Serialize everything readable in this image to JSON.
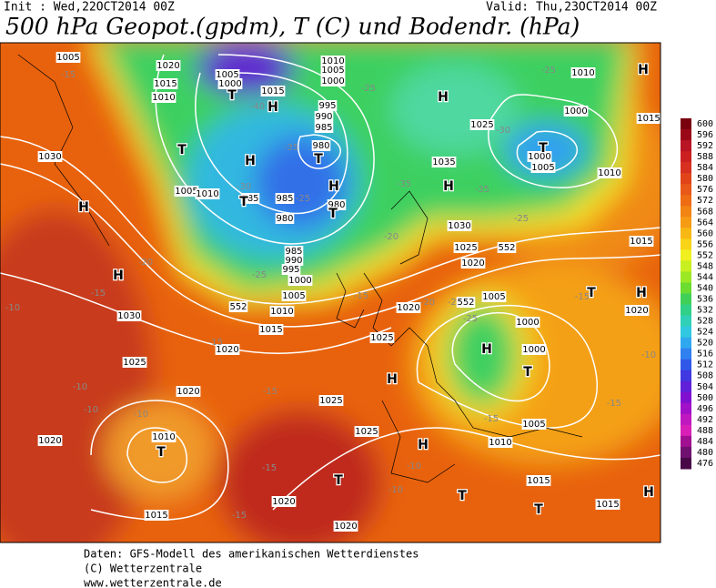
{
  "header": {
    "init": "Init : Wed,22OCT2014 00Z",
    "valid": "Valid: Thu,23OCT2014 00Z",
    "title": "500 hPa Geopot.(gpdm), T (C) und Bodendr. (hPa)"
  },
  "colorbar": {
    "levels": [
      600,
      596,
      592,
      588,
      584,
      580,
      576,
      572,
      568,
      564,
      560,
      556,
      552,
      548,
      544,
      540,
      536,
      532,
      528,
      524,
      520,
      516,
      512,
      508,
      504,
      500,
      496,
      492,
      488,
      484,
      480,
      476
    ],
    "colors": [
      "#7a0010",
      "#9a0818",
      "#b81424",
      "#cc2020",
      "#d83020",
      "#e04418",
      "#e85818",
      "#ee6c14",
      "#f28414",
      "#f69c14",
      "#f8b814",
      "#f8d418",
      "#f0f020",
      "#c8f020",
      "#9ce824",
      "#6cdc30",
      "#40d058",
      "#30d088",
      "#30d0b8",
      "#30c8e0",
      "#30a8f0",
      "#3080f0",
      "#3058e8",
      "#4038e0",
      "#6020d8",
      "#8010d0",
      "#a010c8",
      "#c018c0",
      "#d820b8",
      "#a01090",
      "#701070",
      "#480848"
    ]
  },
  "map": {
    "labels": [
      "1005",
      "1020",
      "1005",
      "1000",
      "1015",
      "1010",
      "1015",
      "1010",
      "1005",
      "1000",
      "995",
      "990",
      "985",
      "980",
      "1010",
      "1000",
      "1015",
      "1030",
      "1035",
      "1025",
      "1000",
      "1005",
      "1010",
      "1005",
      "1010",
      "985",
      "985",
      "980",
      "980",
      "1030",
      "1025",
      "1020",
      "1015",
      "985",
      "990",
      "995",
      "1000",
      "1005",
      "1010",
      "1015",
      "1020",
      "1030",
      "1025",
      "1020",
      "1020",
      "1010",
      "1015",
      "1020",
      "1025",
      "1025",
      "1020",
      "1025",
      "1020",
      "1005",
      "1000",
      "1000",
      "1010",
      "1005",
      "1015",
      "1015",
      "1020",
      "-15",
      "-40",
      "-35",
      "-25",
      "-25",
      "-30",
      "-35",
      "-35",
      "-25",
      "-30",
      "-25",
      "-20",
      "-20",
      "-15",
      "-10",
      "-25",
      "-20",
      "-15",
      "-20",
      "-20",
      "-25",
      "-15",
      "-15",
      "-10",
      "-10",
      "-10",
      "-15",
      "-15",
      "-10",
      "-10",
      "-15",
      "-15",
      "-15",
      "-10",
      "552",
      "552",
      "552",
      "H",
      "H",
      "H",
      "H",
      "H",
      "H",
      "H",
      "H",
      "H",
      "H",
      "H",
      "H",
      "H",
      "T",
      "T",
      "T",
      "T",
      "T",
      "T",
      "T",
      "T",
      "T",
      "T",
      "T",
      "T"
    ]
  },
  "footer": {
    "lines": [
      "Daten: GFS-Modell des amerikanischen Wetterdienstes",
      "(C) Wetterzentrale",
      "www.wetterzentrale.de"
    ]
  }
}
